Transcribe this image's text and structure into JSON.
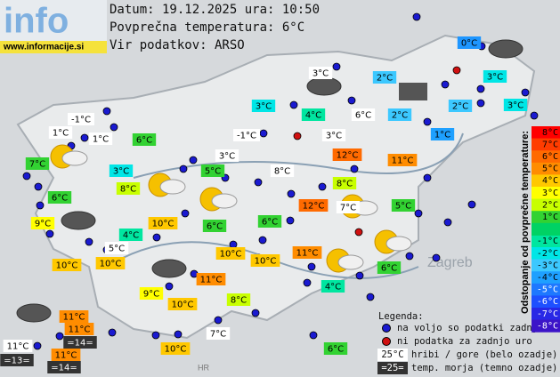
{
  "header": {
    "logo": "info",
    "site": "www.informacije.si",
    "date": "Datum: 19.12.2025 ura: 10:50",
    "average": "Povprečna temperatura: 6°C",
    "source": "Vir podatkov: ARSO"
  },
  "places": [
    "Zagreb",
    "HR"
  ],
  "stations": [
    {
      "label": "0°C",
      "bg": "#1e96ff"
    },
    {
      "label": "3°C",
      "bg": "#ffffff"
    },
    {
      "label": "2°C",
      "bg": "#3cc8ff"
    },
    {
      "label": "3°C",
      "bg": "#00e6e6"
    },
    {
      "label": "3°C",
      "bg": "#00e6e6"
    },
    {
      "label": "4°C",
      "bg": "#00e6a0"
    },
    {
      "label": "6°C",
      "bg": "#ffffff"
    },
    {
      "label": "2°C",
      "bg": "#3cc8ff"
    },
    {
      "label": "2°C",
      "bg": "#3cc8ff"
    },
    {
      "label": "3°C",
      "bg": "#00e6e6"
    },
    {
      "label": "-1°C",
      "bg": "#ffffff"
    },
    {
      "label": "1°C",
      "bg": "#ffffff"
    },
    {
      "label": "1°C",
      "bg": "#ffffff"
    },
    {
      "label": "6°C",
      "bg": "#32d232"
    },
    {
      "label": "-1°C",
      "bg": "#ffffff"
    },
    {
      "label": "3°C",
      "bg": "#ffffff"
    },
    {
      "label": "1°C",
      "bg": "#1ea0ff"
    },
    {
      "label": "7°C",
      "bg": "#32d232"
    },
    {
      "label": "3°C",
      "bg": "#00e6e6"
    },
    {
      "label": "3°C",
      "bg": "#ffffff"
    },
    {
      "label": "12°C",
      "bg": "#ff6a00"
    },
    {
      "label": "11°C",
      "bg": "#ff8c00"
    },
    {
      "label": "5°C",
      "bg": "#32d232"
    },
    {
      "label": "8°C",
      "bg": "#ffffff"
    },
    {
      "label": "8°C",
      "bg": "#c8ff00"
    },
    {
      "label": "8°C",
      "bg": "#c8ff00"
    },
    {
      "label": "6°C",
      "bg": "#32d232"
    },
    {
      "label": "12°C",
      "bg": "#ff6a00"
    },
    {
      "label": "7°C",
      "bg": "#ffffff"
    },
    {
      "label": "5°C",
      "bg": "#32d232"
    },
    {
      "label": "9°C",
      "bg": "#ffff00"
    },
    {
      "label": "10°C",
      "bg": "#ffc800"
    },
    {
      "label": "6°C",
      "bg": "#32d232"
    },
    {
      "label": "6°C",
      "bg": "#32d232"
    },
    {
      "label": "4°C",
      "bg": "#00e6a0"
    },
    {
      "label": "5°C",
      "bg": "#ffffff"
    },
    {
      "label": "10°C",
      "bg": "#ffc800"
    },
    {
      "label": "10°C",
      "bg": "#ffc800"
    },
    {
      "label": "10°C",
      "bg": "#ffc800"
    },
    {
      "label": "10°C",
      "bg": "#ffc800"
    },
    {
      "label": "11°C",
      "bg": "#ff8c00"
    },
    {
      "label": "6°C",
      "bg": "#32d232"
    },
    {
      "label": "11°C",
      "bg": "#ff8c00"
    },
    {
      "label": "4°C",
      "bg": "#00e6a0"
    },
    {
      "label": "9°C",
      "bg": "#ffff00"
    },
    {
      "label": "10°C",
      "bg": "#ffc800"
    },
    {
      "label": "8°C",
      "bg": "#c8ff00"
    },
    {
      "label": "11°C",
      "bg": "#ff8c00"
    },
    {
      "label": "11°C",
      "bg": "#ff8c00"
    },
    {
      "label": "7°C",
      "bg": "#ffffff"
    },
    {
      "label": "=14=",
      "bg": "#333333"
    },
    {
      "label": "11°C",
      "bg": "#ffffff"
    },
    {
      "label": "10°C",
      "bg": "#ffc800"
    },
    {
      "label": "6°C",
      "bg": "#32d232"
    },
    {
      "label": "11°C",
      "bg": "#ff8c00"
    },
    {
      "label": "=13=",
      "bg": "#333333"
    },
    {
      "label": "=14=",
      "bg": "#333333"
    }
  ],
  "scale": {
    "title": "Odstopanje od povprečne temperature:",
    "steps": [
      {
        "label": "8°C",
        "color": "#ff0000"
      },
      {
        "label": "7°C",
        "color": "#ff3c00"
      },
      {
        "label": "6°C",
        "color": "#ff6a00"
      },
      {
        "label": "5°C",
        "color": "#ff8c00"
      },
      {
        "label": "4°C",
        "color": "#ffc800"
      },
      {
        "label": "3°C",
        "color": "#ffff00"
      },
      {
        "label": "2°C",
        "color": "#c8ff00"
      },
      {
        "label": "1°C",
        "color": "#32d232"
      },
      {
        "label": "-1°C",
        "color": "#00e6a0"
      },
      {
        "label": "-2°C",
        "color": "#00e6e6"
      },
      {
        "label": "-3°C",
        "color": "#3cc8ff"
      },
      {
        "label": "-4°C",
        "color": "#1ea0ff"
      },
      {
        "label": "-5°C",
        "color": "#1e78ff"
      },
      {
        "label": "-6°C",
        "color": "#1e50ff"
      },
      {
        "label": "-7°C",
        "color": "#2828e6"
      },
      {
        "label": "-8°C",
        "color": "#3c14c8"
      }
    ]
  },
  "legend": {
    "title": "Legenda:",
    "available": "na voljo so podatki zadnje ure",
    "missing": "ni podatka za zadnjo uro",
    "mountain_sample": "25°C",
    "mountain": "hribi / gore (belo ozadje)",
    "sea_sample": "=25=",
    "sea": "temp. morja (temno ozadje)"
  }
}
